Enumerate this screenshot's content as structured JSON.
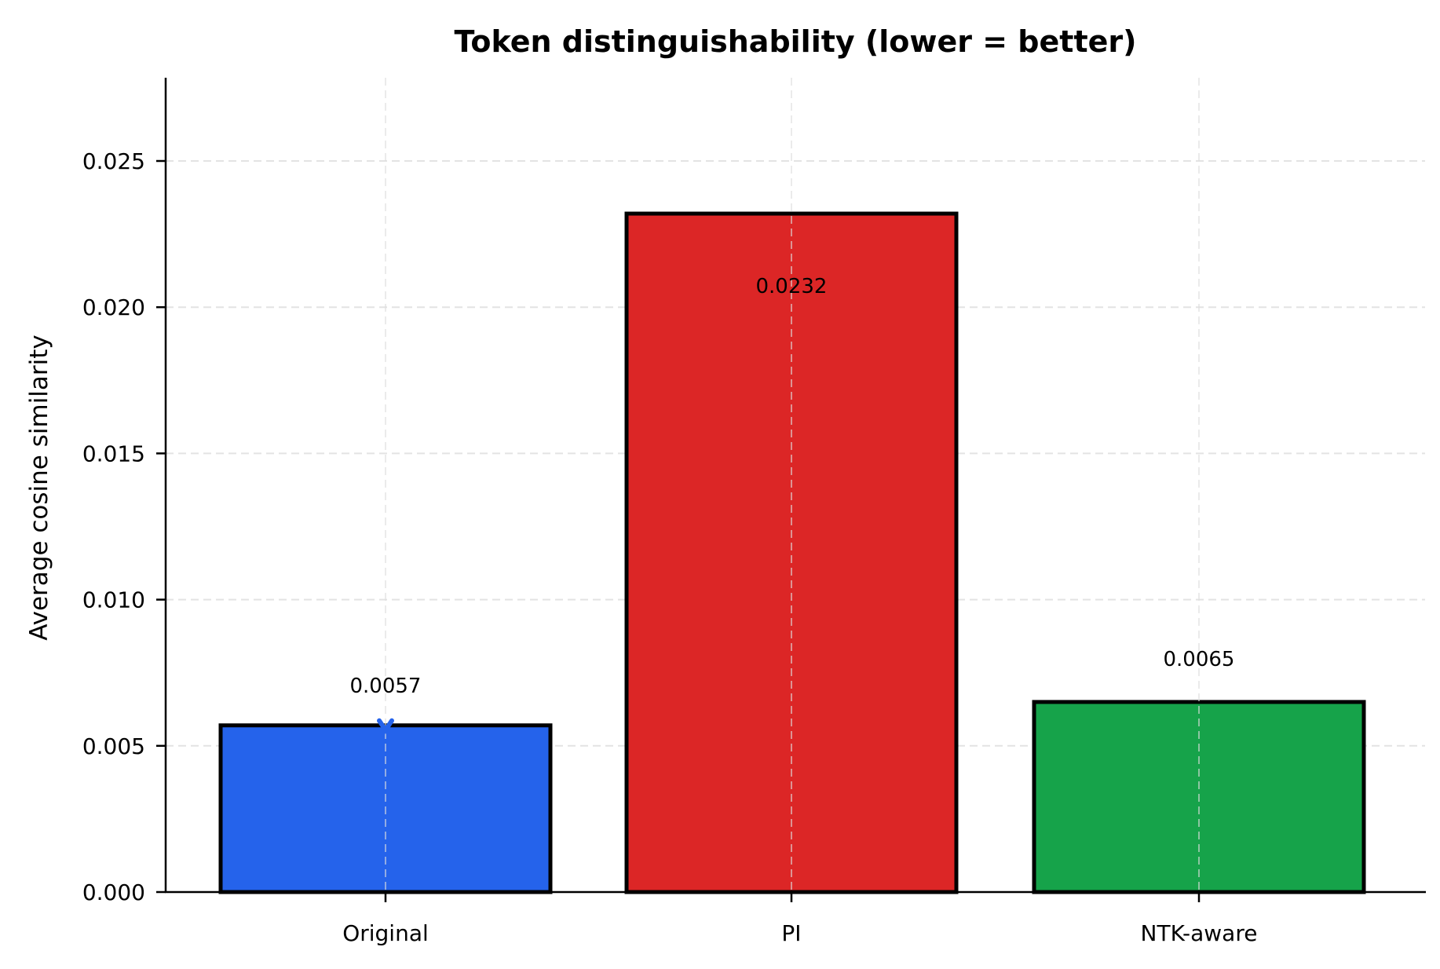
{
  "chart_data": {
    "type": "bar",
    "title": "Token distinguishability (lower = better)",
    "xlabel": "",
    "ylabel": "Average cosine similarity",
    "categories": [
      "Original",
      "PI",
      "NTK-aware"
    ],
    "values": [
      0.0057,
      0.0232,
      0.0065
    ],
    "value_labels": [
      "0.0057",
      "0.0232",
      "0.0065"
    ],
    "colors": [
      "#2563eb",
      "#dc2626",
      "#16a34a"
    ],
    "edge_color": "#000000",
    "ylim": [
      0,
      0.028
    ],
    "yticks": [
      0.0,
      0.005,
      0.01,
      0.015,
      0.02,
      0.025
    ],
    "ytick_labels": [
      "0.000",
      "0.005",
      "0.010",
      "0.015",
      "0.020",
      "0.025"
    ],
    "grid": true,
    "grid_style": "dashed",
    "legend": null
  }
}
